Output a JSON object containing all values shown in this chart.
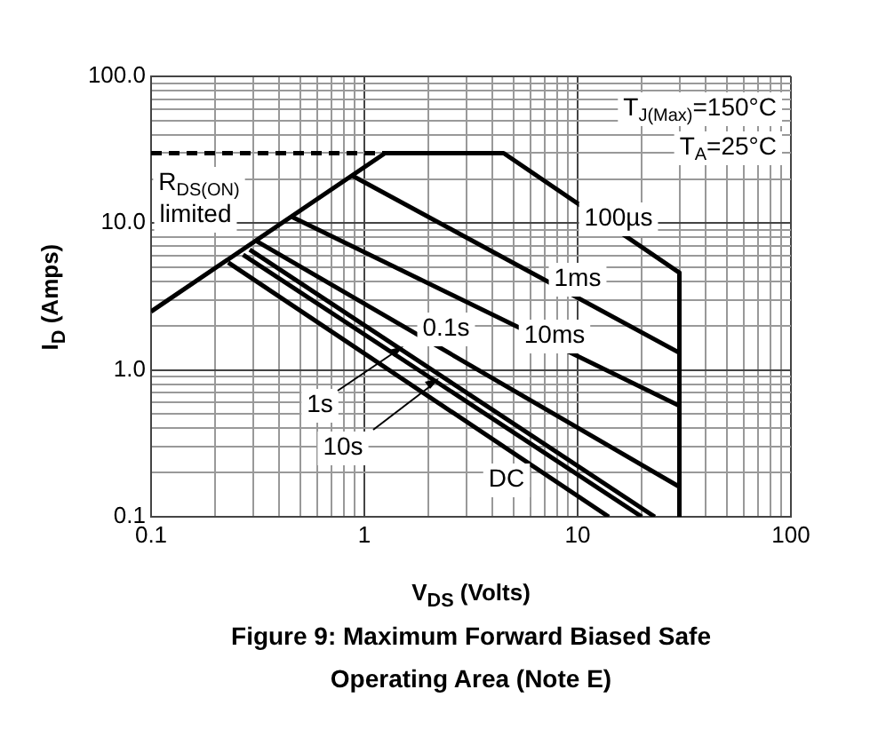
{
  "chart_data": {
    "type": "line",
    "title": "Figure 9: Maximum Forward Biased Safe Operating Area (Note E)",
    "xlabel": "V$_{DS}$ (Volts)",
    "ylabel": "I$_{D}$ (Amps)",
    "log": "xy",
    "grid": true,
    "legend": false,
    "marker": "none",
    "xlim": [
      0.1,
      100
    ],
    "ylim": [
      0.1,
      100
    ],
    "xticks": [
      0.1,
      {
        "value": 0.2,
        "label": null
      },
      {
        "value": 0.3,
        "label": null
      },
      {
        "value": 0.4,
        "label": null
      },
      {
        "value": 0.5,
        "label": null
      },
      {
        "value": 0.6,
        "label": null
      },
      {
        "value": 0.7,
        "label": null
      },
      {
        "value": 0.8,
        "label": null
      },
      {
        "value": 0.9,
        "label": null
      },
      1,
      {
        "value": 2,
        "label": null
      },
      {
        "value": 3,
        "label": null
      },
      {
        "value": 4,
        "label": null
      },
      {
        "value": 5,
        "label": null
      },
      {
        "value": 6,
        "label": null
      },
      {
        "value": 7,
        "label": null
      },
      {
        "value": 8,
        "label": null
      },
      {
        "value": 9,
        "label": null
      },
      10,
      {
        "value": 20,
        "label": null
      },
      {
        "value": 30,
        "label": null
      },
      {
        "value": 40,
        "label": null
      },
      {
        "value": 50,
        "label": null
      },
      {
        "value": 60,
        "label": null
      },
      {
        "value": 70,
        "label": null
      },
      {
        "value": 80,
        "label": null
      },
      {
        "value": 90,
        "label": null
      },
      100
    ],
    "yticks": [
      {
        "value": 0.1,
        "label": "0.1"
      },
      {
        "value": 0.2,
        "label": null
      },
      {
        "value": 0.3,
        "label": null
      },
      {
        "value": 0.4,
        "label": null
      },
      {
        "value": 0.5,
        "label": null
      },
      {
        "value": 0.6,
        "label": null
      },
      {
        "value": 0.7,
        "label": null
      },
      {
        "value": 0.8,
        "label": null
      },
      {
        "value": 0.9,
        "label": null
      },
      {
        "value": 1,
        "label": "1.0"
      },
      {
        "value": 2,
        "label": null
      },
      {
        "value": 3,
        "label": null
      },
      {
        "value": 4,
        "label": null
      },
      {
        "value": 5,
        "label": null
      },
      {
        "value": 6,
        "label": null
      },
      {
        "value": 7,
        "label": null
      },
      {
        "value": 8,
        "label": null
      },
      {
        "value": 9,
        "label": null
      },
      {
        "value": 10,
        "label": "10.0"
      },
      {
        "value": 20,
        "label": null
      },
      {
        "value": 30,
        "label": null
      },
      {
        "value": 40,
        "label": null
      },
      {
        "value": 50,
        "label": null
      },
      {
        "value": 60,
        "label": null
      },
      {
        "value": 70,
        "label": null
      },
      {
        "value": 80,
        "label": null
      },
      {
        "value": 90,
        "label": null
      },
      {
        "value": 100,
        "label": "100.0"
      }
    ],
    "series": [
      {
        "color": "#000000",
        "x": [
          0.1,
          1.25,
          4.5,
          30,
          30
        ],
        "values": [
          2.5,
          30,
          30,
          4.6,
          0.1
        ]
      },
      {
        "color": "#000000",
        "x": [
          0.1,
          1.25
        ],
        "values": [
          30,
          30
        ],
        "line_style": "dashed"
      },
      {
        "color": "#000000",
        "x": [
          0.88,
          30
        ],
        "values": [
          21,
          1.31
        ]
      },
      {
        "color": "#000000",
        "x": [
          0.46,
          30
        ],
        "values": [
          11,
          0.57
        ]
      },
      {
        "color": "#000000",
        "x": [
          0.31,
          30
        ],
        "values": [
          7.6,
          0.16
        ]
      },
      {
        "color": "#000000",
        "x": [
          0.29,
          23
        ],
        "values": [
          6.6,
          0.1
        ]
      },
      {
        "color": "#000000",
        "x": [
          0.27,
          20
        ],
        "values": [
          6.1,
          0.1
        ]
      },
      {
        "color": "#000000",
        "x": [
          0.23,
          14
        ],
        "values": [
          5.4,
          0.1
        ]
      }
    ],
    "annotations": [
      "T$_{J(Max)}$=150°C",
      "T$_{A}$=25°C",
      "R$_{DS(ON)}$",
      "limited",
      "100µs",
      "1ms",
      "0.1s",
      "10ms",
      "1s",
      "10s",
      "DC"
    ]
  }
}
